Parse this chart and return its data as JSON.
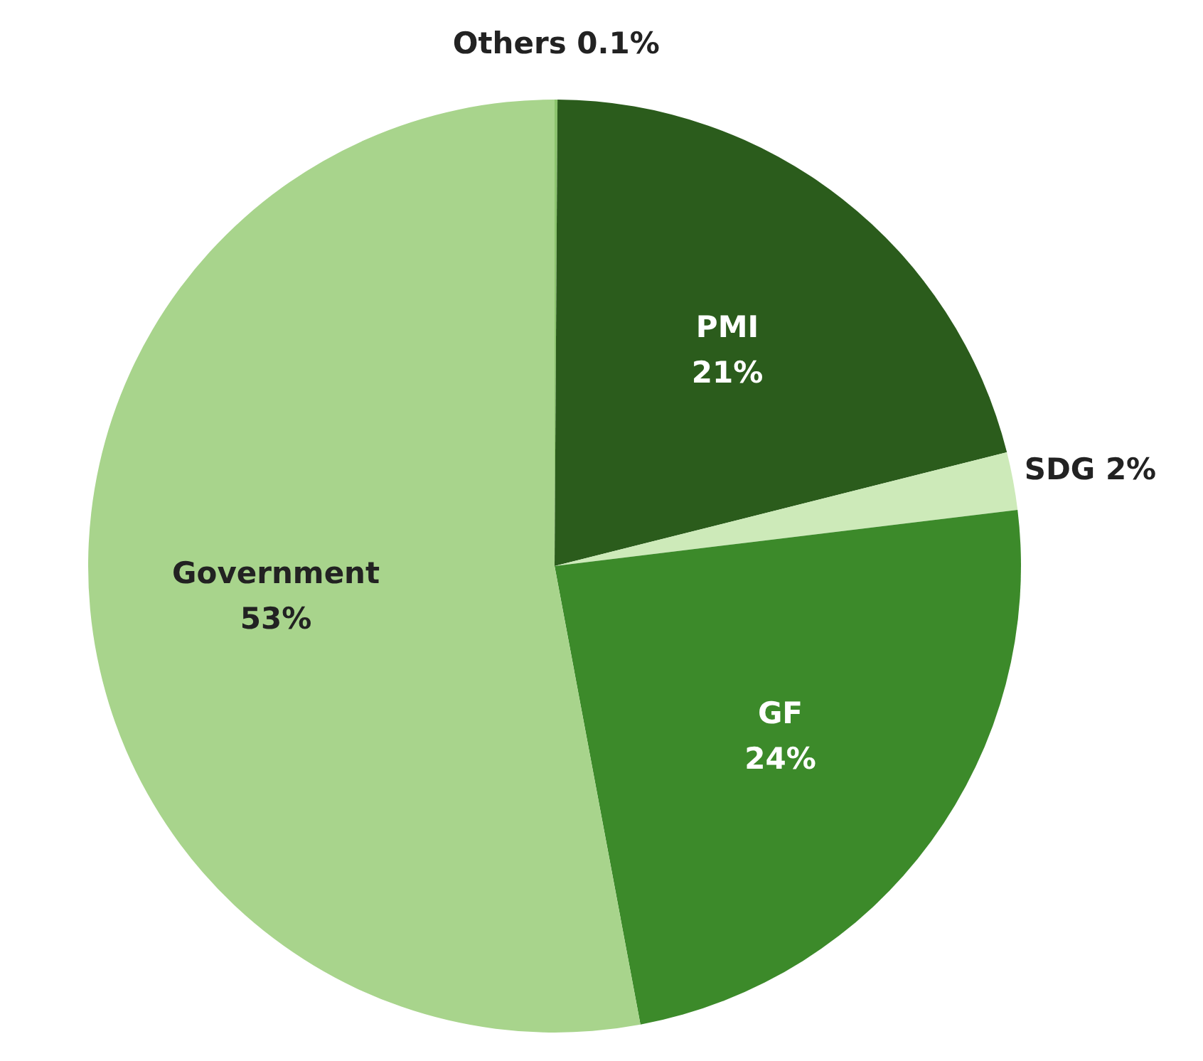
{
  "chart_data": {
    "type": "pie",
    "categories": [
      "Others",
      "PMI",
      "SDG",
      "GF",
      "Government"
    ],
    "values": [
      0.1,
      21,
      2,
      24,
      53
    ],
    "colors": [
      "#8cc46e",
      "#2b5c1c",
      "#cdeab9",
      "#3c8a2a",
      "#a8d48c"
    ],
    "value_labels": [
      "0.1%",
      "21%",
      "2%",
      "24%",
      "53%"
    ]
  }
}
